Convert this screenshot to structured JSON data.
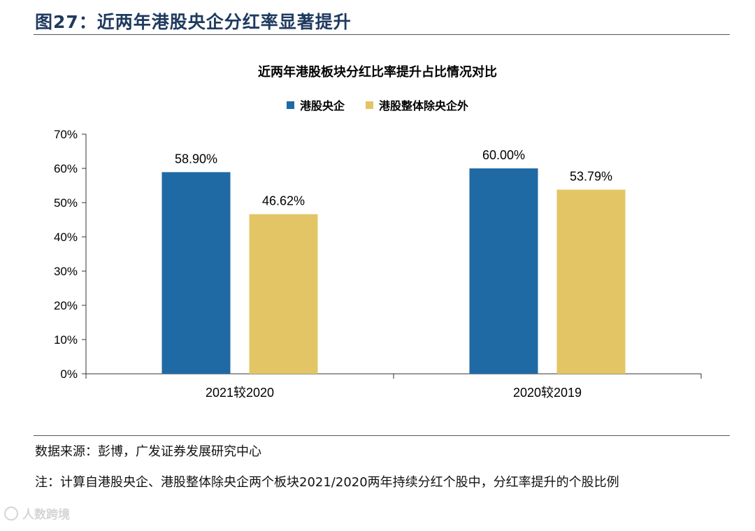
{
  "figure_title": "图27：近两年港股央企分红率显著提升",
  "source": "数据来源：彭博，广发证券发展研究中心",
  "note": "注：计算自港股央企、港股整体除央企两个板块2021/2020两年持续分红个股中，分红率提升的个股比例",
  "watermark": "人数跨境",
  "colors": {
    "series1": "#1f6aa5",
    "series2": "#e3c565",
    "title": "#1f3a5f"
  },
  "chart_data": {
    "type": "bar",
    "title": "近两年港股板块分红比率提升占比情况对比",
    "categories": [
      "2021较2020",
      "2020较2019"
    ],
    "series": [
      {
        "name": "港股央企",
        "values": [
          58.9,
          60.0
        ],
        "labels": [
          "58.90%",
          "60.00%"
        ]
      },
      {
        "name": "港股整体除央企外",
        "values": [
          46.62,
          53.79
        ],
        "labels": [
          "46.62%",
          "53.79%"
        ]
      }
    ],
    "ylim": [
      0,
      70
    ],
    "yticks": [
      0,
      10,
      20,
      30,
      40,
      50,
      60,
      70
    ],
    "ytick_labels": [
      "0%",
      "10%",
      "20%",
      "30%",
      "40%",
      "50%",
      "60%",
      "70%"
    ],
    "xlabel": "",
    "ylabel": "",
    "grid": false,
    "legend_position": "top"
  }
}
